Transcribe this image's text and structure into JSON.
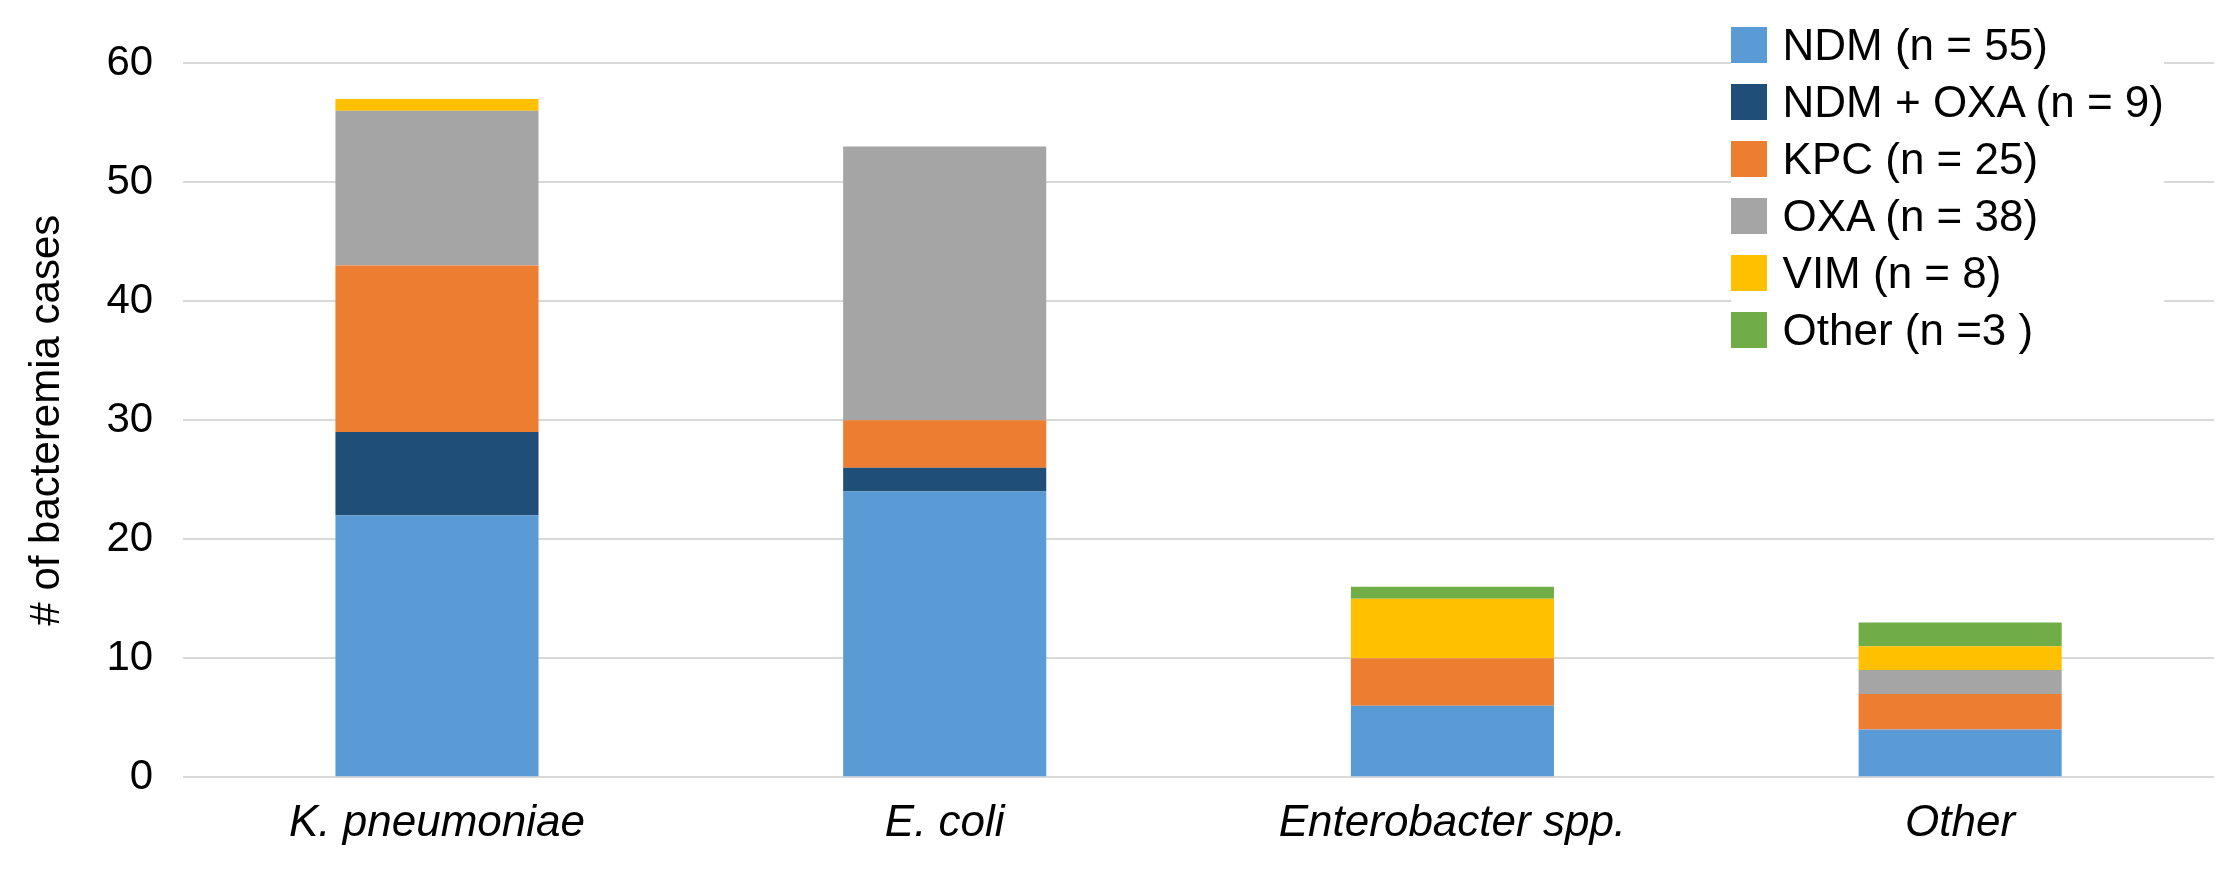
{
  "chart_data": {
    "type": "bar",
    "stacked": true,
    "ylabel": "# of bacteremia cases",
    "categories": [
      "K. pneumoniae",
      "E. coli",
      "Enterobacter spp.",
      "Other"
    ],
    "series": [
      {
        "name": "NDM (n = 55)",
        "color": "#5b9bd5",
        "values": [
          22,
          24,
          6,
          4
        ]
      },
      {
        "name": "NDM + OXA (n = 9)",
        "color": "#1f4e79",
        "values": [
          7,
          2,
          null,
          null
        ]
      },
      {
        "name": "KPC (n = 25)",
        "color": "#ed7d31",
        "values": [
          14,
          4,
          4,
          3
        ]
      },
      {
        "name": "OXA (n = 38)",
        "color": "#a5a5a5",
        "values": [
          13,
          23,
          null,
          2
        ]
      },
      {
        "name": "VIM (n = 8)",
        "color": "#ffc000",
        "values": [
          1,
          null,
          5,
          2
        ]
      },
      {
        "name": "Other (n =3 )",
        "color": "#70ad47",
        "values": [
          null,
          null,
          1,
          2
        ]
      }
    ],
    "ylim": [
      0,
      60
    ],
    "yticks": [
      0,
      10,
      20,
      30,
      40,
      50,
      60
    ],
    "grid": "y",
    "legend": "top right"
  }
}
